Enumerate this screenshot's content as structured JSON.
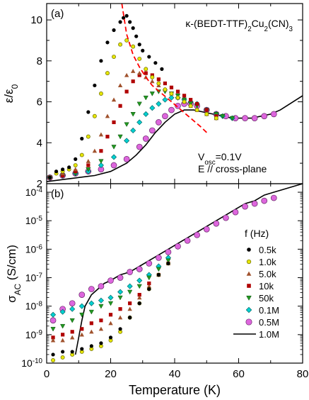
{
  "chart_data": [
    {
      "type": "scatter",
      "panel_label": "(a)",
      "compound": "κ-(BEDT-TTF)2Cu2(CN)3",
      "annotation_vosc": "Vosc=0.1V",
      "annotation_field": "E // cross-plane",
      "ylabel": "ε/ε0",
      "xlim": [
        0,
        80
      ],
      "ylim": [
        2,
        10.8
      ],
      "yticks": [
        2,
        4,
        6,
        8,
        10
      ],
      "grid": false,
      "series": [
        {
          "name": "0.5k",
          "color": "#000000",
          "marker": "circle-filled",
          "x": [
            1,
            3,
            5,
            7,
            9,
            11,
            13,
            15,
            17,
            19,
            21,
            23,
            24,
            25,
            26,
            27,
            28,
            29,
            30,
            32,
            34,
            36
          ],
          "y": [
            2.3,
            2.6,
            2.7,
            2.8,
            3.2,
            4.2,
            5.5,
            6.8,
            8.0,
            8.9,
            9.5,
            9.9,
            10.1,
            10.2,
            9.9,
            9.6,
            9.2,
            8.8,
            8.5,
            8.2,
            7.9,
            7.6
          ]
        },
        {
          "name": "1.0k",
          "color": "#e6e600",
          "marker": "circle-open",
          "x": [
            1,
            3,
            5,
            7,
            9,
            11,
            13,
            15,
            17,
            19,
            21,
            23,
            25,
            27,
            29,
            31,
            33,
            35,
            37,
            39,
            41,
            43,
            45,
            47,
            50,
            53
          ],
          "y": [
            2.3,
            2.5,
            2.6,
            2.7,
            2.9,
            3.4,
            4.3,
            5.3,
            6.4,
            7.4,
            8.2,
            8.8,
            9.0,
            8.7,
            8.1,
            7.6,
            7.2,
            6.9,
            6.6,
            6.4,
            6.2,
            6.0,
            5.8,
            5.6,
            5.4,
            5.2
          ]
        },
        {
          "name": "5.0k",
          "color": "#a0522d",
          "marker": "triangle",
          "x": [
            1,
            5,
            9,
            13,
            15,
            17,
            19,
            21,
            23,
            25,
            27,
            29,
            31,
            33,
            35,
            37,
            39,
            41,
            43,
            45,
            47,
            50,
            53
          ],
          "y": [
            2.3,
            2.5,
            2.7,
            3.1,
            3.6,
            4.4,
            5.3,
            6.1,
            6.8,
            7.3,
            7.5,
            7.4,
            7.2,
            7.0,
            6.8,
            6.6,
            6.4,
            6.2,
            6.0,
            5.8,
            5.6,
            5.4,
            5.2
          ]
        },
        {
          "name": "10k",
          "color": "#b00000",
          "marker": "square",
          "x": [
            1,
            5,
            9,
            13,
            17,
            19,
            21,
            23,
            25,
            27,
            29,
            31,
            33,
            35,
            37,
            39,
            41,
            43,
            45,
            47,
            50,
            53
          ],
          "y": [
            2.3,
            2.4,
            2.6,
            2.9,
            3.6,
            4.3,
            5.0,
            5.8,
            6.5,
            7.0,
            7.3,
            7.4,
            7.3,
            7.1,
            6.9,
            6.7,
            6.5,
            6.3,
            6.1,
            5.9,
            5.6,
            5.3
          ]
        },
        {
          "name": "50k",
          "color": "#229922",
          "marker": "triangle-down",
          "x": [
            1,
            5,
            9,
            13,
            17,
            21,
            23,
            25,
            27,
            29,
            31,
            33,
            35,
            37,
            39,
            41,
            43,
            45,
            47,
            50,
            53,
            55,
            58
          ],
          "y": [
            2.3,
            2.4,
            2.5,
            2.7,
            3.1,
            3.8,
            4.3,
            4.9,
            5.4,
            5.9,
            6.2,
            6.4,
            6.5,
            6.5,
            6.4,
            6.3,
            6.1,
            5.9,
            5.8,
            5.6,
            5.4,
            5.3,
            5.2
          ]
        },
        {
          "name": "0.1M",
          "color": "#00d0d0",
          "marker": "diamond",
          "x": [
            1,
            5,
            9,
            13,
            17,
            21,
            25,
            27,
            29,
            31,
            33,
            35,
            37,
            39,
            41,
            43,
            45,
            47,
            50,
            53,
            55,
            58
          ],
          "y": [
            2.3,
            2.4,
            2.5,
            2.6,
            2.9,
            3.3,
            4.1,
            4.6,
            5.0,
            5.4,
            5.7,
            5.9,
            6.1,
            6.2,
            6.2,
            6.1,
            6.0,
            5.9,
            5.6,
            5.4,
            5.3,
            5.2
          ]
        },
        {
          "name": "0.5M",
          "color": "#dd66dd",
          "marker": "circle-large",
          "x": [
            1,
            5,
            9,
            13,
            17,
            21,
            25,
            29,
            31,
            33,
            35,
            37,
            39,
            41,
            43,
            45,
            47,
            50,
            53,
            56,
            59,
            62,
            65,
            68,
            71
          ],
          "y": [
            2.3,
            2.4,
            2.5,
            2.6,
            2.7,
            2.9,
            3.2,
            3.8,
            4.2,
            4.6,
            5.0,
            5.3,
            5.6,
            5.8,
            5.9,
            5.9,
            5.8,
            5.6,
            5.4,
            5.3,
            5.2,
            5.2,
            5.2,
            5.3,
            5.4
          ]
        },
        {
          "name": "1.0M",
          "color": "#000000",
          "marker": "line",
          "x": [
            0,
            5,
            10,
            15,
            20,
            25,
            28,
            31,
            34,
            37,
            40,
            43,
            46,
            49,
            52,
            55,
            58,
            61,
            64,
            67,
            70,
            73,
            76,
            80
          ],
          "y": [
            2.1,
            2.2,
            2.3,
            2.4,
            2.6,
            3.0,
            3.4,
            3.9,
            4.5,
            5.0,
            5.4,
            5.6,
            5.6,
            5.5,
            5.4,
            5.3,
            5.2,
            5.2,
            5.2,
            5.3,
            5.4,
            5.6,
            5.9,
            6.3
          ]
        }
      ],
      "fit_line": {
        "color": "#ff0000",
        "style": "dashed",
        "x": [
          23.5,
          25,
          27,
          29,
          31,
          33,
          36,
          39,
          42,
          45,
          48,
          50
        ],
        "y": [
          10.8,
          9.3,
          8.3,
          7.7,
          7.2,
          6.8,
          6.4,
          6.0,
          5.6,
          5.2,
          4.8,
          4.5
        ]
      }
    },
    {
      "type": "scatter",
      "panel_label": "(b)",
      "xlabel": "Temperature (K)",
      "ylabel": "σAC (S/cm)",
      "xlim": [
        0,
        80
      ],
      "ylim_log10": [
        -10,
        -3.7
      ],
      "xticks": [
        0,
        20,
        40,
        60,
        80
      ],
      "yticks_log10": [
        -10,
        -9,
        -8,
        -7,
        -6,
        -5,
        -4
      ],
      "ytick_labels": [
        "10-10",
        "10-9",
        "10-8",
        "10-7",
        "10-6",
        "10-5",
        "10-4"
      ],
      "scale": "log",
      "grid": false,
      "legend": {
        "title": "f (Hz)",
        "placement": "right"
      },
      "series": [
        {
          "name": "0.5k",
          "color": "#000000",
          "marker": "circle-filled",
          "x": [
            2,
            5,
            8,
            11,
            14,
            17,
            20,
            23,
            26,
            29,
            32,
            35,
            38
          ],
          "y_log10": [
            -9.7,
            -9.6,
            -9.6,
            -9.5,
            -9.4,
            -9.3,
            -9.1,
            -8.8,
            -8.4,
            -7.9,
            -7.4,
            -6.9,
            -6.5
          ]
        },
        {
          "name": "1.0k",
          "color": "#e6e600",
          "marker": "circle-open",
          "x": [
            2,
            5,
            8,
            11,
            14,
            17,
            20,
            23,
            26,
            29,
            32,
            35,
            38
          ],
          "y_log10": [
            -9.9,
            -9.8,
            -9.7,
            -9.6,
            -9.5,
            -9.4,
            -9.2,
            -8.9,
            -8.4,
            -7.9,
            -7.4,
            -6.9,
            -6.5
          ]
        },
        {
          "name": "5.0k",
          "color": "#a0522d",
          "marker": "triangle",
          "x": [
            2,
            5,
            8,
            11,
            14,
            17,
            20,
            23,
            26,
            29,
            32,
            35,
            38
          ],
          "y_log10": [
            -9.2,
            -9.2,
            -9.1,
            -9.0,
            -8.9,
            -8.8,
            -8.6,
            -8.4,
            -8.1,
            -7.7,
            -7.3,
            -6.9,
            -6.5
          ]
        },
        {
          "name": "10k",
          "color": "#b00000",
          "marker": "square",
          "x": [
            2,
            5,
            8,
            11,
            14,
            17,
            20,
            23,
            26,
            29,
            32,
            35,
            38
          ],
          "y_log10": [
            -9.1,
            -9.0,
            -8.9,
            -8.8,
            -8.6,
            -8.5,
            -8.3,
            -8.1,
            -7.9,
            -7.6,
            -7.2,
            -6.9,
            -6.5
          ]
        },
        {
          "name": "50k",
          "color": "#229922",
          "marker": "triangle-down",
          "x": [
            2,
            5,
            8,
            11,
            14,
            17,
            20,
            23,
            26,
            29,
            32,
            35,
            38
          ],
          "y_log10": [
            -8.8,
            -8.7,
            -8.5,
            -8.3,
            -8.2,
            -8.0,
            -7.9,
            -7.7,
            -7.5,
            -7.3,
            -7.0,
            -6.7,
            -6.4
          ]
        },
        {
          "name": "0.1M",
          "color": "#00d0d0",
          "marker": "diamond",
          "x": [
            2,
            5,
            8,
            11,
            14,
            17,
            20,
            23,
            26,
            29,
            32,
            35,
            38
          ],
          "y_log10": [
            -8.3,
            -8.2,
            -8.1,
            -8.0,
            -7.9,
            -7.8,
            -7.7,
            -7.5,
            -7.3,
            -7.1,
            -6.9,
            -6.6,
            -6.3
          ]
        },
        {
          "name": "0.5M",
          "color": "#dd66dd",
          "marker": "circle-large",
          "x": [
            2,
            5,
            8,
            11,
            14,
            17,
            20,
            23,
            26,
            29,
            32,
            35,
            38,
            41,
            44,
            47,
            50,
            53,
            56,
            59,
            62,
            65,
            68,
            71
          ],
          "y_log10": [
            -8.5,
            -8.1,
            -7.9,
            -7.6,
            -7.4,
            -7.3,
            -7.1,
            -7.0,
            -6.8,
            -6.7,
            -6.5,
            -6.3,
            -6.1,
            -5.9,
            -5.7,
            -5.5,
            -5.3,
            -5.1,
            -4.9,
            -4.7,
            -4.5,
            -4.4,
            -4.3,
            -4.2
          ]
        },
        {
          "name": "1.0M",
          "color": "#000000",
          "marker": "line",
          "x": [
            9,
            10,
            11,
            12,
            14,
            16,
            18,
            20,
            23,
            26,
            29,
            32,
            35,
            38,
            41,
            44,
            47,
            50,
            53,
            56,
            59,
            62,
            65,
            68,
            71,
            74,
            77,
            80
          ],
          "y_log10": [
            -9.7,
            -9.1,
            -8.5,
            -8.0,
            -7.6,
            -7.4,
            -7.2,
            -7.1,
            -6.9,
            -6.8,
            -6.6,
            -6.4,
            -6.2,
            -6.0,
            -5.8,
            -5.6,
            -5.4,
            -5.2,
            -5.0,
            -4.8,
            -4.6,
            -4.4,
            -4.3,
            -4.1,
            -4.0,
            -3.9,
            -3.8,
            -3.7
          ]
        }
      ]
    }
  ]
}
